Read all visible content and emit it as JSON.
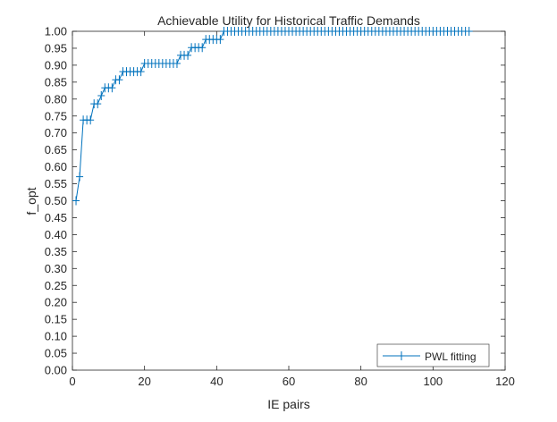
{
  "chart_data": {
    "type": "line",
    "title": "Achievable Utility for Historical Traffic Demands",
    "xlabel": "IE pairs",
    "ylabel": "f_opt",
    "xlim": [
      0,
      120
    ],
    "ylim": [
      0,
      1
    ],
    "xticks": [
      "0",
      "20",
      "40",
      "60",
      "80",
      "100",
      "120"
    ],
    "yticks": [
      "0.00",
      "0.05",
      "0.10",
      "0.15",
      "0.20",
      "0.25",
      "0.30",
      "0.35",
      "0.40",
      "0.45",
      "0.50",
      "0.55",
      "0.60",
      "0.65",
      "0.70",
      "0.75",
      "0.80",
      "0.85",
      "0.90",
      "0.95",
      "1.00"
    ],
    "grid": false,
    "legend_position": "bottom-right",
    "series": [
      {
        "name": "PWL fitting",
        "color": "#0072BD",
        "marker": "plus",
        "x_start": 1,
        "x_step": 1,
        "y": [
          0.5,
          0.571,
          0.738,
          0.738,
          0.738,
          0.786,
          0.786,
          0.81,
          0.833,
          0.833,
          0.833,
          0.857,
          0.857,
          0.881,
          0.881,
          0.881,
          0.881,
          0.881,
          0.881,
          0.905,
          0.905,
          0.905,
          0.905,
          0.905,
          0.905,
          0.905,
          0.905,
          0.905,
          0.905,
          0.929,
          0.929,
          0.929,
          0.952,
          0.952,
          0.952,
          0.952,
          0.976,
          0.976,
          0.976,
          0.976,
          0.976,
          1,
          1,
          1,
          1,
          1,
          1,
          1,
          1,
          1,
          1,
          1,
          1,
          1,
          1,
          1,
          1,
          1,
          1,
          1,
          1,
          1,
          1,
          1,
          1,
          1,
          1,
          1,
          1,
          1,
          1,
          1,
          1,
          1,
          1,
          1,
          1,
          1,
          1,
          1,
          1,
          1,
          1,
          1,
          1,
          1,
          1,
          1,
          1,
          1,
          1,
          1,
          1,
          1,
          1,
          1,
          1,
          1,
          1,
          1,
          1,
          1,
          1,
          1,
          1,
          1,
          1,
          1,
          1,
          1
        ]
      }
    ]
  }
}
